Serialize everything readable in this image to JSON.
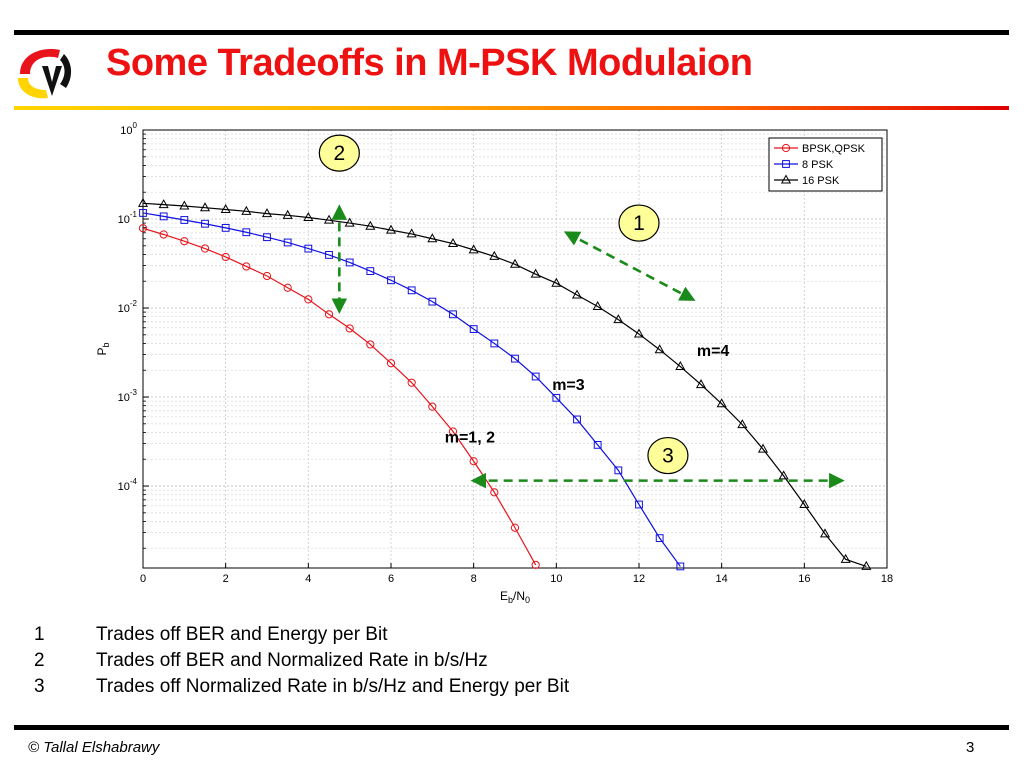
{
  "slide": {
    "title": "Some Tradeoffs in M-PSK Modulaion",
    "notes": [
      {
        "num": "1",
        "text": "Trades off BER and Energy per Bit"
      },
      {
        "num": "2",
        "text": "Trades off BER and Normalized Rate in b/s/Hz"
      },
      {
        "num": "3",
        "text": "Trades off Normalized Rate in b/s/Hz and Energy per Bit"
      }
    ],
    "footer": {
      "copyright": "© Tallal Elshabrawy",
      "page_number": "3"
    }
  },
  "chart_data": {
    "type": "line",
    "ylog": true,
    "xlim": [
      0,
      18
    ],
    "ylim": [
      1.2e-05,
      1
    ],
    "xticks": [
      "0",
      "2",
      "4",
      "6",
      "8",
      "10",
      "12",
      "14",
      "16",
      "18"
    ],
    "yticks": [
      {
        "base": "10",
        "exp": "0"
      },
      {
        "base": "10",
        "exp": "-1"
      },
      {
        "base": "10",
        "exp": "-2"
      },
      {
        "base": "10",
        "exp": "-3"
      },
      {
        "base": "10",
        "exp": "-4"
      }
    ],
    "xlabel": {
      "main": "E",
      "sub1": "b",
      "mid": "/N",
      "sub2": "0"
    },
    "ylabel": {
      "main": "P",
      "sub": "b"
    },
    "grid": true,
    "legend_position": "top-right",
    "series": [
      {
        "name": "BPSK,QPSK",
        "color": "#e8131b",
        "marker": "circle",
        "label": "m=1, 2",
        "x": [
          0,
          0.5,
          1,
          1.5,
          2,
          2.5,
          3,
          3.5,
          4,
          4.5,
          5,
          5.5,
          6,
          6.5,
          7,
          7.5,
          8,
          8.5,
          9,
          9.5
        ],
        "y": [
          0.0787,
          0.067,
          0.0563,
          0.0466,
          0.0375,
          0.0293,
          0.0229,
          0.0169,
          0.0125,
          0.0085,
          0.0059,
          0.0039,
          0.0024,
          0.00145,
          0.00078,
          0.00041,
          0.00019,
          8.5e-05,
          3.4e-05,
          1.3e-05
        ]
      },
      {
        "name": "8 PSK",
        "color": "#1010e0",
        "marker": "square",
        "label": "m=3",
        "x": [
          0,
          0.5,
          1,
          1.5,
          2,
          2.5,
          3,
          3.5,
          4,
          4.5,
          5,
          5.5,
          6,
          6.5,
          7,
          7.5,
          8,
          8.5,
          9,
          9.5,
          10,
          10.5,
          11,
          11.5,
          12,
          12.5,
          13
        ],
        "y": [
          0.117,
          0.107,
          0.0975,
          0.0885,
          0.0795,
          0.071,
          0.0625,
          0.0545,
          0.0465,
          0.0395,
          0.0325,
          0.026,
          0.0205,
          0.0158,
          0.0118,
          0.0085,
          0.0058,
          0.004,
          0.0027,
          0.0017,
          0.00098,
          0.00056,
          0.00029,
          0.00015,
          6.2e-05,
          2.6e-05,
          1.25e-05
        ]
      },
      {
        "name": "16 PSK",
        "color": "#000000",
        "marker": "triangle",
        "label": "m=4",
        "x": [
          0,
          0.5,
          1,
          1.5,
          2,
          2.5,
          3,
          3.5,
          4,
          4.5,
          5,
          5.5,
          6,
          6.5,
          7,
          7.5,
          8,
          8.5,
          9,
          9.5,
          10,
          10.5,
          11,
          11.5,
          12,
          12.5,
          13,
          13.5,
          14,
          14.5,
          15,
          15.5,
          16,
          16.5,
          17,
          17.5
        ],
        "y": [
          0.15,
          0.145,
          0.14,
          0.134,
          0.128,
          0.122,
          0.115,
          0.11,
          0.104,
          0.097,
          0.09,
          0.083,
          0.075,
          0.068,
          0.06,
          0.053,
          0.045,
          0.038,
          0.031,
          0.024,
          0.019,
          0.014,
          0.0104,
          0.0074,
          0.0051,
          0.0034,
          0.0022,
          0.00138,
          0.00084,
          0.00049,
          0.00026,
          0.00013,
          6.2e-05,
          2.9e-05,
          1.5e-05,
          1.25e-05
        ]
      }
    ],
    "annotations": [
      {
        "id": "1",
        "text": "1",
        "kind": "circle-label",
        "at": [
          12,
          0.09
        ]
      },
      {
        "id": "2",
        "text": "2",
        "kind": "circle-label",
        "at": [
          4.75,
          0.55
        ]
      },
      {
        "id": "3",
        "text": "3",
        "kind": "circle-label",
        "at": [
          12.7,
          0.00022
        ]
      }
    ],
    "arrows": [
      {
        "id": "arrow-1",
        "from": [
          10.25,
          0.07
        ],
        "to": [
          13.3,
          0.0125
        ],
        "color": "#1a8a1a",
        "style": "dashed"
      },
      {
        "id": "arrow-2",
        "from": [
          4.75,
          0.135
        ],
        "to": [
          4.75,
          0.0093
        ],
        "color": "#1a8a1a",
        "style": "dashed"
      },
      {
        "id": "arrow-3",
        "from": [
          8,
          0.000115
        ],
        "to": [
          16.9,
          0.000115
        ],
        "color": "#1a8a1a",
        "style": "dashed"
      }
    ],
    "series_labels": [
      {
        "series": "m=1, 2",
        "at": [
          7.3,
          0.00031
        ]
      },
      {
        "series": "m=3",
        "at": [
          9.9,
          0.0012
        ]
      },
      {
        "series": "m=4",
        "at": [
          13.4,
          0.0029
        ]
      }
    ]
  }
}
